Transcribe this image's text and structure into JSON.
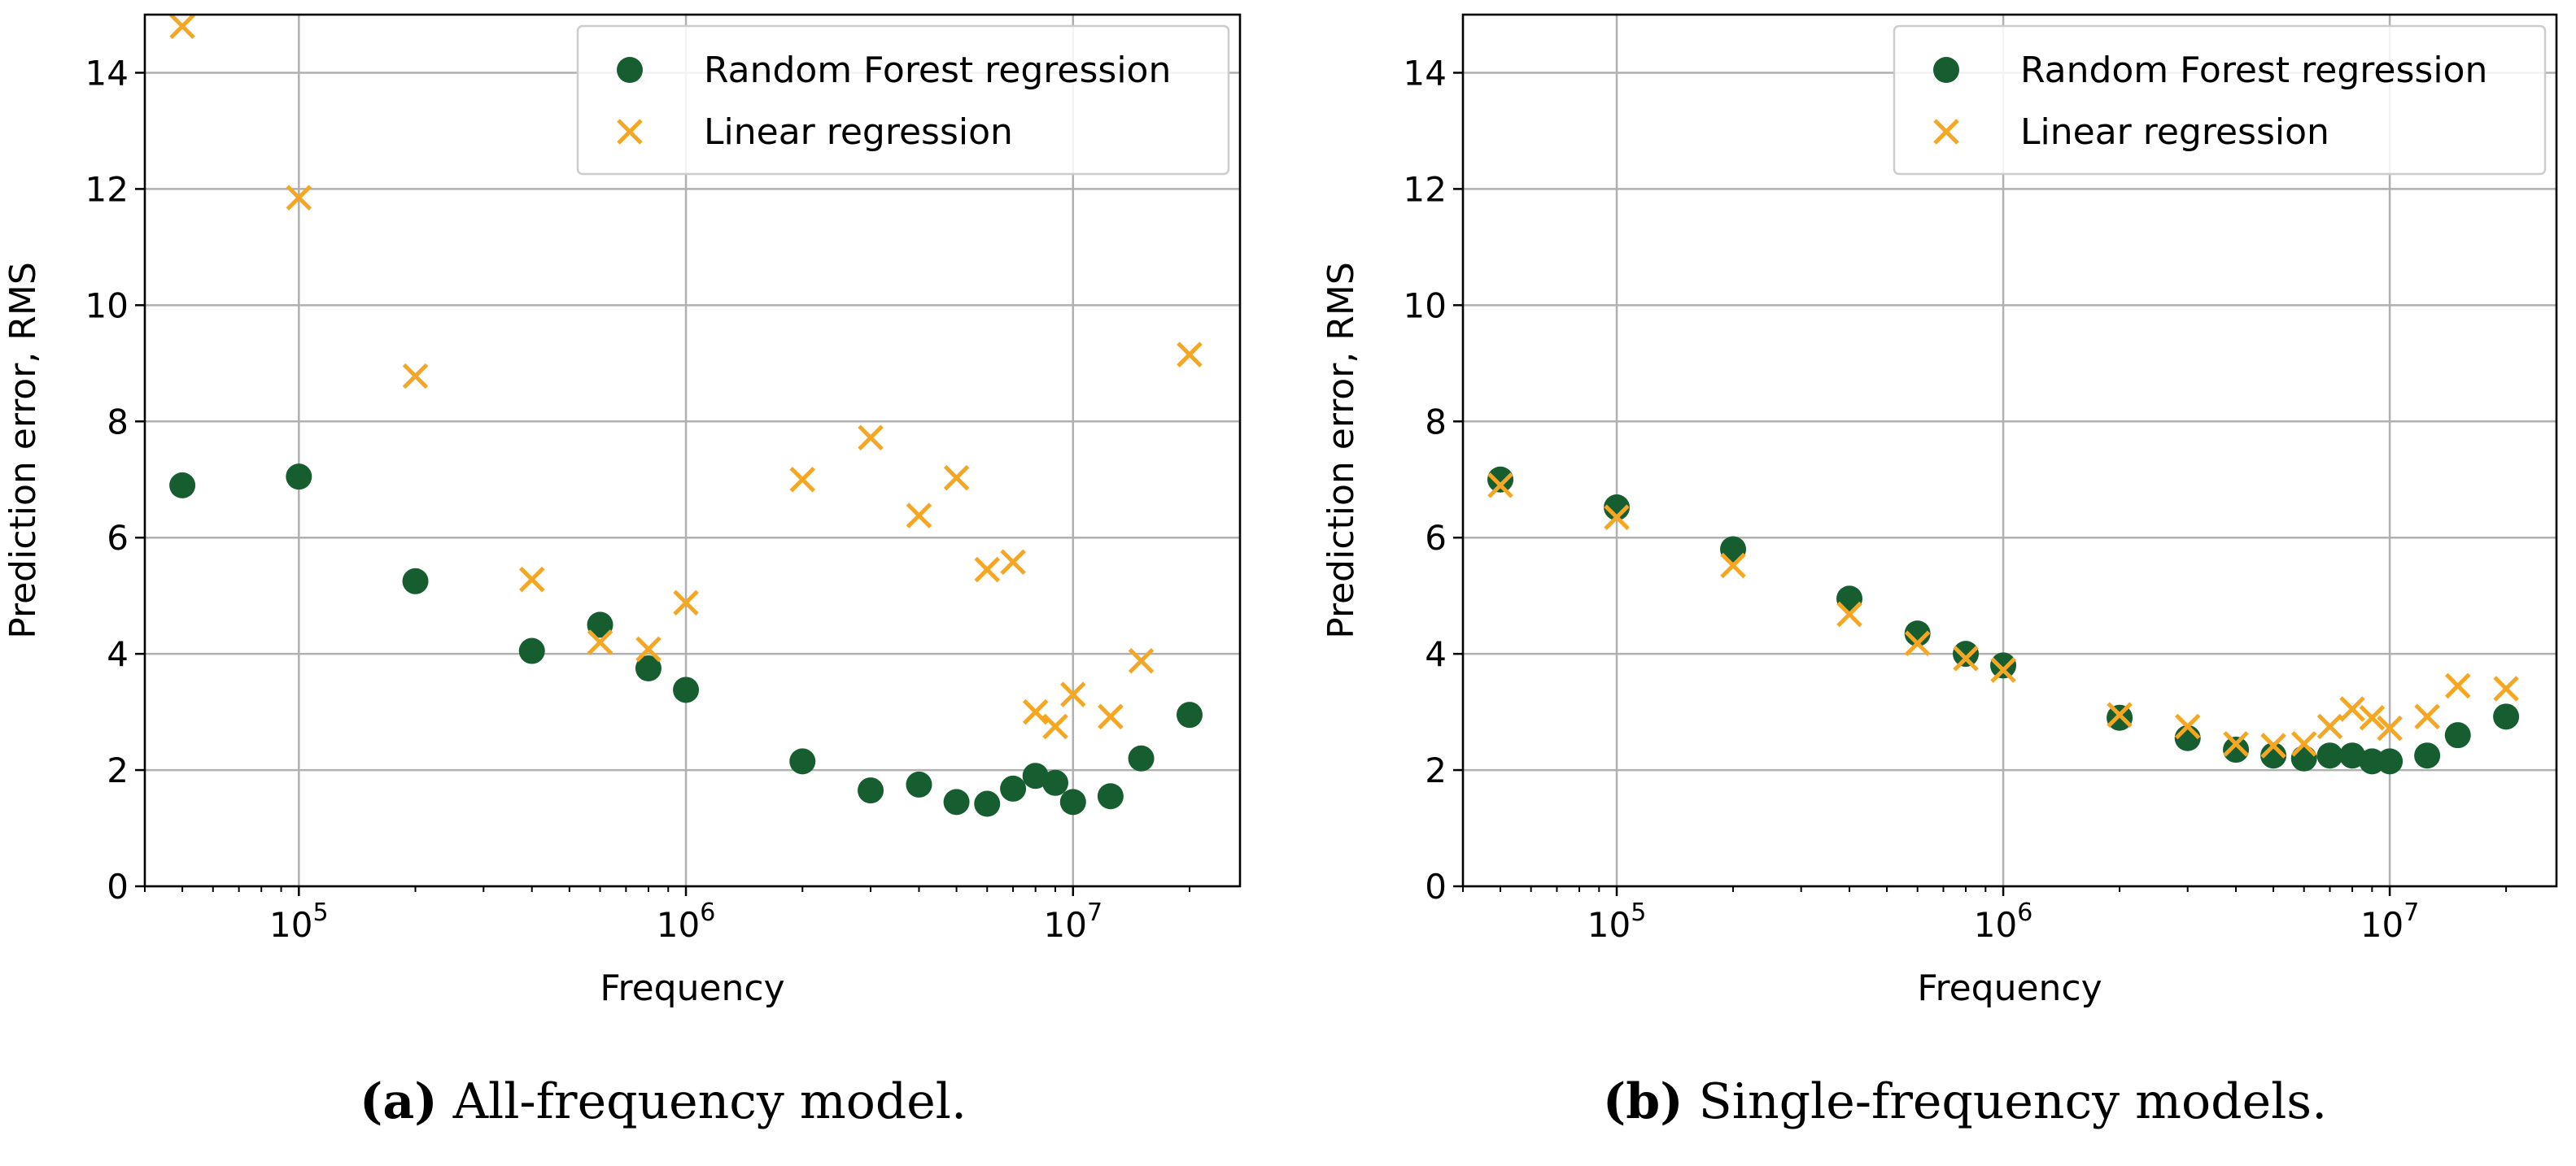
{
  "panels": [
    {
      "caption": {
        "label": "a",
        "text": " All-frequency model."
      },
      "chart_data": {
        "type": "scatter",
        "xlabel": "Frequency",
        "ylabel": "Prediction error, RMS",
        "xscale": "log",
        "xlim": [
          40000,
          27000000
        ],
        "ylim": [
          0,
          15
        ],
        "xticks": [
          {
            "value": 100000,
            "base": "10",
            "exp": "5"
          },
          {
            "value": 1000000,
            "base": "10",
            "exp": "6"
          },
          {
            "value": 10000000,
            "base": "10",
            "exp": "7"
          }
        ],
        "yticks": [
          0,
          2,
          4,
          6,
          8,
          10,
          12,
          14
        ],
        "grid": true,
        "legend_position": "top-right",
        "series": [
          {
            "name": "Random Forest regression",
            "marker": "circle",
            "color": "#165e2f",
            "x": [
              50000,
              100000,
              200000,
              400000,
              600000,
              800000,
              1000000,
              2000000,
              3000000,
              4000000,
              5000000,
              6000000,
              7000000,
              8000000,
              9000000,
              10000000,
              12500000,
              15000000,
              20000000
            ],
            "y": [
              6.9,
              7.05,
              5.25,
              4.05,
              4.5,
              3.75,
              3.38,
              2.15,
              1.65,
              1.75,
              1.45,
              1.42,
              1.68,
              1.9,
              1.78,
              1.45,
              1.55,
              2.2,
              2.95
            ]
          },
          {
            "name": "Linear regression",
            "marker": "x",
            "color": "#f5a623",
            "x": [
              50000,
              100000,
              200000,
              400000,
              600000,
              800000,
              1000000,
              2000000,
              3000000,
              4000000,
              5000000,
              6000000,
              7000000,
              8000000,
              9000000,
              10000000,
              12500000,
              15000000,
              20000000
            ],
            "y": [
              14.8,
              11.85,
              8.78,
              5.28,
              4.2,
              4.08,
              4.88,
              7.0,
              7.72,
              6.38,
              7.03,
              5.45,
              5.58,
              3.0,
              2.75,
              3.3,
              2.92,
              3.88,
              9.15
            ]
          }
        ]
      }
    },
    {
      "caption": {
        "label": "b",
        "text": " Single-frequency models."
      },
      "chart_data": {
        "type": "scatter",
        "xlabel": "Frequency",
        "ylabel": "Prediction error, RMS",
        "xscale": "log",
        "xlim": [
          40000,
          27000000
        ],
        "ylim": [
          0,
          15
        ],
        "xticks": [
          {
            "value": 100000,
            "base": "10",
            "exp": "5"
          },
          {
            "value": 1000000,
            "base": "10",
            "exp": "6"
          },
          {
            "value": 10000000,
            "base": "10",
            "exp": "7"
          }
        ],
        "yticks": [
          0,
          2,
          4,
          6,
          8,
          10,
          12,
          14
        ],
        "grid": true,
        "legend_position": "top-right",
        "series": [
          {
            "name": "Random Forest regression",
            "marker": "circle",
            "color": "#165e2f",
            "x": [
              50000,
              100000,
              200000,
              400000,
              600000,
              800000,
              1000000,
              2000000,
              3000000,
              4000000,
              5000000,
              6000000,
              7000000,
              8000000,
              9000000,
              10000000,
              12500000,
              15000000,
              20000000
            ],
            "y": [
              7.0,
              6.52,
              5.8,
              4.95,
              4.35,
              4.0,
              3.8,
              2.9,
              2.55,
              2.35,
              2.25,
              2.2,
              2.25,
              2.25,
              2.15,
              2.15,
              2.25,
              2.6,
              2.92
            ]
          },
          {
            "name": "Linear regression",
            "marker": "x",
            "color": "#f5a623",
            "x": [
              50000,
              100000,
              200000,
              400000,
              600000,
              800000,
              1000000,
              2000000,
              3000000,
              4000000,
              5000000,
              6000000,
              7000000,
              8000000,
              9000000,
              10000000,
              12500000,
              15000000,
              20000000
            ],
            "y": [
              6.9,
              6.35,
              5.52,
              4.68,
              4.18,
              3.92,
              3.72,
              2.95,
              2.75,
              2.45,
              2.42,
              2.45,
              2.75,
              3.05,
              2.9,
              2.72,
              2.92,
              3.45,
              3.4
            ]
          }
        ]
      }
    }
  ]
}
